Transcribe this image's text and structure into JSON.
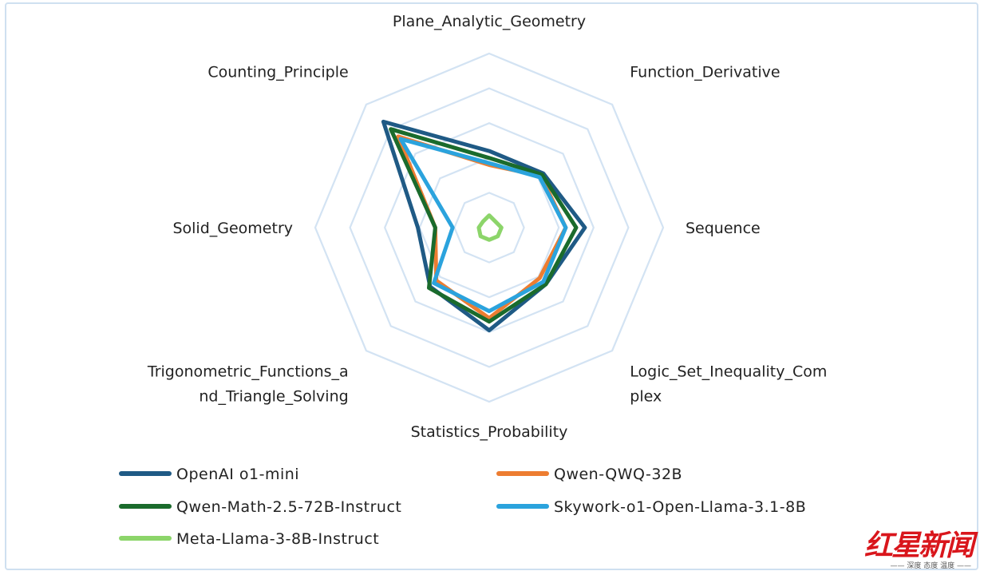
{
  "chart_data": {
    "type": "radar",
    "axes": [
      "Plane_Analytic_Geometry",
      "Function_Derivative",
      "Sequence",
      "Logic_Set_Inequality_Complex",
      "Statistics_Probability",
      "Trigonometric_Functions_and_Triangle_Solving",
      "Solid_Geometry",
      "Counting_Principle"
    ],
    "axis_label_lines": [
      [
        "Plane_Analytic_Geometry"
      ],
      [
        "Function_Derivative"
      ],
      [
        "Sequence"
      ],
      [
        "Logic_Set_Inequality_Com",
        "plex"
      ],
      [
        "Statistics_Probability"
      ],
      [
        "Trigonometric_Functions_a",
        "nd_Triangle_Solving"
      ],
      [
        "Solid_Geometry"
      ],
      [
        "Counting_Principle"
      ]
    ],
    "rings": 5,
    "rmax": 1.0,
    "series": [
      {
        "name": "OpenAI o1-mini",
        "color": "#1f5a85",
        "values": [
          0.44,
          0.44,
          0.55,
          0.46,
          0.59,
          0.48,
          0.41,
          0.86
        ]
      },
      {
        "name": "Qwen-QWQ-32B",
        "color": "#ed7d31",
        "values": [
          0.36,
          0.42,
          0.44,
          0.41,
          0.52,
          0.43,
          0.31,
          0.74
        ]
      },
      {
        "name": "Qwen-Math-2.5-72B-Instruct",
        "color": "#1a6b2c",
        "values": [
          0.4,
          0.43,
          0.5,
          0.46,
          0.54,
          0.49,
          0.31,
          0.8
        ]
      },
      {
        "name": "Skywork-o1-Open-Llama-3.1-8B",
        "color": "#2ba3dd",
        "values": [
          0.37,
          0.41,
          0.44,
          0.44,
          0.48,
          0.45,
          0.21,
          0.72
        ]
      },
      {
        "name": "Meta-Llama-3-8B-Instruct",
        "color": "#8cd56a",
        "values": [
          0.07,
          0.05,
          0.07,
          0.07,
          0.07,
          0.07,
          0.06,
          0.05
        ]
      }
    ],
    "legend_position": "bottom"
  },
  "watermark": {
    "main": "红星新闻",
    "sub": "—— 深度 态度 温度 ——"
  }
}
